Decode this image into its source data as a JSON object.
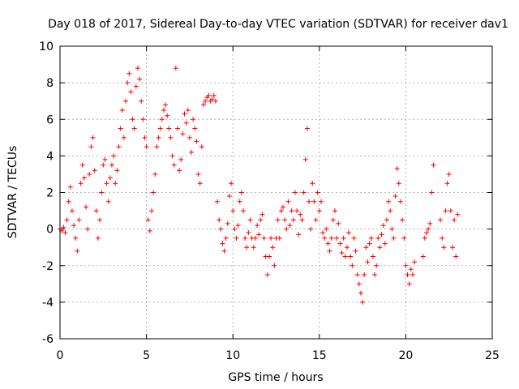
{
  "chart_data": {
    "type": "scatter",
    "title": "Day 018 of 2017, Sidereal Day-to-day VTEC variation (SDTVAR) for receiver dav1",
    "xlabel": "GPS time / hours",
    "ylabel": "SDTVAR / TECUs",
    "xlim": [
      0,
      25
    ],
    "ylim": [
      -6,
      10
    ],
    "xticks": [
      0,
      5,
      10,
      15,
      20,
      25
    ],
    "yticks": [
      -6,
      -4,
      -2,
      0,
      2,
      4,
      6,
      8,
      10
    ],
    "xtick_labels": [
      "0",
      "5",
      "10",
      "15",
      "20",
      "25"
    ],
    "ytick_labels": [
      "-6",
      "-4",
      "-2",
      "0",
      "2",
      "4",
      "6",
      "8",
      "10"
    ],
    "grid": true,
    "marker": "plus",
    "series": [
      {
        "name": "dav1",
        "color": "#ff0000",
        "points": [
          [
            0.0,
            0.0
          ],
          [
            0.1,
            -0.1
          ],
          [
            0.2,
            0.1
          ],
          [
            0.3,
            -0.2
          ],
          [
            0.4,
            0.5
          ],
          [
            0.5,
            1.5
          ],
          [
            0.6,
            2.3
          ],
          [
            0.7,
            1.0
          ],
          [
            0.8,
            0.2
          ],
          [
            0.9,
            -0.5
          ],
          [
            1.0,
            -1.2
          ],
          [
            1.1,
            0.5
          ],
          [
            1.2,
            2.5
          ],
          [
            1.3,
            3.5
          ],
          [
            1.4,
            2.8
          ],
          [
            1.5,
            1.2
          ],
          [
            1.6,
            0.0
          ],
          [
            1.7,
            3.0
          ],
          [
            1.8,
            4.5
          ],
          [
            1.9,
            5.0
          ],
          [
            2.0,
            3.2
          ],
          [
            2.1,
            1.0
          ],
          [
            2.2,
            -0.5
          ],
          [
            2.3,
            0.5
          ],
          [
            2.4,
            2.0
          ],
          [
            2.5,
            3.5
          ],
          [
            2.6,
            3.8
          ],
          [
            2.7,
            2.5
          ],
          [
            2.8,
            1.5
          ],
          [
            2.9,
            2.8
          ],
          [
            3.0,
            3.5
          ],
          [
            3.1,
            4.0
          ],
          [
            3.2,
            2.5
          ],
          [
            3.3,
            3.2
          ],
          [
            3.4,
            4.5
          ],
          [
            3.5,
            5.5
          ],
          [
            3.6,
            6.5
          ],
          [
            3.7,
            5.0
          ],
          [
            3.8,
            7.0
          ],
          [
            3.9,
            8.0
          ],
          [
            4.0,
            8.5
          ],
          [
            4.1,
            7.5
          ],
          [
            4.2,
            6.0
          ],
          [
            4.3,
            5.5
          ],
          [
            4.4,
            7.8
          ],
          [
            4.5,
            8.8
          ],
          [
            4.6,
            8.2
          ],
          [
            4.7,
            7.0
          ],
          [
            4.8,
            6.0
          ],
          [
            4.9,
            5.0
          ],
          [
            5.0,
            4.5
          ],
          [
            5.1,
            0.5
          ],
          [
            5.2,
            -0.1
          ],
          [
            5.3,
            1.0
          ],
          [
            5.4,
            2.0
          ],
          [
            5.5,
            3.0
          ],
          [
            5.6,
            4.5
          ],
          [
            5.7,
            5.0
          ],
          [
            5.8,
            5.5
          ],
          [
            5.9,
            6.0
          ],
          [
            6.0,
            6.5
          ],
          [
            6.1,
            6.8
          ],
          [
            6.2,
            6.2
          ],
          [
            6.3,
            5.5
          ],
          [
            6.4,
            5.0
          ],
          [
            6.5,
            4.0
          ],
          [
            6.6,
            3.5
          ],
          [
            6.7,
            8.8
          ],
          [
            6.8,
            5.5
          ],
          [
            6.9,
            3.2
          ],
          [
            7.0,
            3.8
          ],
          [
            7.1,
            5.2
          ],
          [
            7.2,
            6.3
          ],
          [
            7.3,
            5.8
          ],
          [
            7.4,
            6.5
          ],
          [
            7.5,
            5.0
          ],
          [
            7.6,
            4.2
          ],
          [
            7.7,
            6.0
          ],
          [
            7.8,
            5.5
          ],
          [
            7.9,
            4.8
          ],
          [
            8.0,
            3.0
          ],
          [
            8.1,
            2.5
          ],
          [
            8.2,
            4.5
          ],
          [
            8.3,
            6.8
          ],
          [
            8.4,
            7.0
          ],
          [
            8.5,
            7.2
          ],
          [
            8.6,
            7.3
          ],
          [
            8.7,
            7.0
          ],
          [
            8.8,
            7.1
          ],
          [
            8.9,
            7.3
          ],
          [
            9.0,
            7.0
          ],
          [
            9.1,
            1.5
          ],
          [
            9.2,
            0.5
          ],
          [
            9.3,
            0.0
          ],
          [
            9.4,
            -0.8
          ],
          [
            9.5,
            -1.2
          ],
          [
            9.6,
            -0.5
          ],
          [
            9.7,
            0.3
          ],
          [
            9.8,
            1.8
          ],
          [
            9.9,
            2.5
          ],
          [
            10.0,
            1.0
          ],
          [
            10.1,
            0.0
          ],
          [
            10.2,
            -0.5
          ],
          [
            10.3,
            0.2
          ],
          [
            10.4,
            1.5
          ],
          [
            10.5,
            2.0
          ],
          [
            10.6,
            1.0
          ],
          [
            10.7,
            -0.5
          ],
          [
            10.8,
            -1.0
          ],
          [
            10.9,
            -0.2
          ],
          [
            11.0,
            0.5
          ],
          [
            11.1,
            -0.5
          ],
          [
            11.2,
            -1.0
          ],
          [
            11.3,
            -0.5
          ],
          [
            11.4,
            0.2
          ],
          [
            11.5,
            -0.3
          ],
          [
            11.6,
            0.5
          ],
          [
            11.7,
            0.8
          ],
          [
            11.8,
            -0.5
          ],
          [
            11.9,
            -1.5
          ],
          [
            12.0,
            -2.5
          ],
          [
            12.1,
            -1.5
          ],
          [
            12.2,
            -0.5
          ],
          [
            12.3,
            -1.0
          ],
          [
            12.4,
            -2.0
          ],
          [
            12.5,
            -0.5
          ],
          [
            12.6,
            0.5
          ],
          [
            12.7,
            -0.5
          ],
          [
            12.8,
            1.0
          ],
          [
            12.9,
            1.2
          ],
          [
            13.0,
            0.5
          ],
          [
            13.1,
            0.0
          ],
          [
            13.2,
            1.5
          ],
          [
            13.3,
            0.2
          ],
          [
            13.4,
            1.0
          ],
          [
            13.5,
            0.5
          ],
          [
            13.6,
            2.0
          ],
          [
            13.7,
            1.0
          ],
          [
            13.8,
            -0.3
          ],
          [
            13.9,
            0.8
          ],
          [
            14.0,
            0.5
          ],
          [
            14.1,
            2.0
          ],
          [
            14.2,
            3.8
          ],
          [
            14.3,
            5.5
          ],
          [
            14.4,
            1.5
          ],
          [
            14.5,
            0.0
          ],
          [
            14.6,
            2.5
          ],
          [
            14.7,
            1.5
          ],
          [
            14.8,
            0.5
          ],
          [
            14.9,
            2.0
          ],
          [
            15.0,
            1.0
          ],
          [
            15.1,
            1.5
          ],
          [
            15.2,
            -0.2
          ],
          [
            15.3,
            -0.5
          ],
          [
            15.4,
            0.0
          ],
          [
            15.5,
            -0.8
          ],
          [
            15.6,
            -1.2
          ],
          [
            15.7,
            -0.5
          ],
          [
            15.8,
            0.5
          ],
          [
            15.9,
            1.0
          ],
          [
            16.0,
            -0.5
          ],
          [
            16.1,
            0.3
          ],
          [
            16.2,
            -0.8
          ],
          [
            16.3,
            -1.3
          ],
          [
            16.4,
            -0.5
          ],
          [
            16.5,
            -1.5
          ],
          [
            16.6,
            -1.0
          ],
          [
            16.7,
            -0.2
          ],
          [
            16.8,
            -1.5
          ],
          [
            16.9,
            -2.0
          ],
          [
            17.0,
            -0.5
          ],
          [
            17.1,
            -1.2
          ],
          [
            17.2,
            -2.5
          ],
          [
            17.3,
            -3.0
          ],
          [
            17.4,
            -3.5
          ],
          [
            17.5,
            -4.0
          ],
          [
            17.6,
            -2.5
          ],
          [
            17.7,
            -1.0
          ],
          [
            17.8,
            -1.8
          ],
          [
            17.9,
            -0.8
          ],
          [
            18.0,
            -0.5
          ],
          [
            18.1,
            -1.5
          ],
          [
            18.2,
            -2.5
          ],
          [
            18.3,
            -2.0
          ],
          [
            18.4,
            -0.5
          ],
          [
            18.5,
            -1.0
          ],
          [
            18.6,
            -0.3
          ],
          [
            18.7,
            0.2
          ],
          [
            18.8,
            -0.8
          ],
          [
            18.9,
            0.5
          ],
          [
            19.0,
            1.5
          ],
          [
            19.1,
            1.0
          ],
          [
            19.2,
            0.0
          ],
          [
            19.3,
            -0.5
          ],
          [
            19.4,
            1.8
          ],
          [
            19.5,
            3.3
          ],
          [
            19.6,
            2.5
          ],
          [
            19.7,
            1.5
          ],
          [
            19.8,
            0.5
          ],
          [
            19.9,
            -0.5
          ],
          [
            20.0,
            -2.0
          ],
          [
            20.1,
            -2.5
          ],
          [
            20.2,
            -3.0
          ],
          [
            20.3,
            -2.2
          ],
          [
            20.4,
            -2.5
          ],
          [
            20.5,
            -1.8
          ],
          [
            21.0,
            -1.5
          ],
          [
            21.1,
            -0.5
          ],
          [
            21.2,
            -0.2
          ],
          [
            21.3,
            0.0
          ],
          [
            21.4,
            0.3
          ],
          [
            21.5,
            2.0
          ],
          [
            21.6,
            3.5
          ],
          [
            22.0,
            0.5
          ],
          [
            22.1,
            -0.5
          ],
          [
            22.2,
            -1.0
          ],
          [
            22.3,
            1.0
          ],
          [
            22.4,
            2.5
          ],
          [
            22.5,
            3.0
          ],
          [
            22.6,
            1.0
          ],
          [
            22.7,
            -1.0
          ],
          [
            22.8,
            0.5
          ],
          [
            22.9,
            -1.5
          ],
          [
            23.0,
            0.8
          ]
        ]
      }
    ]
  }
}
